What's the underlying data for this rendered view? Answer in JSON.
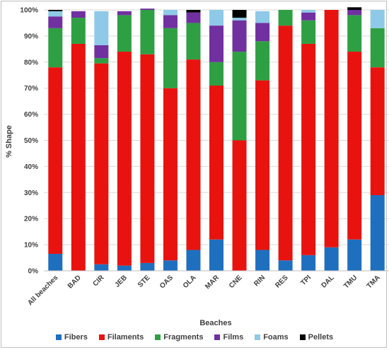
{
  "chart_data": {
    "type": "bar",
    "stacked": true,
    "title": "",
    "xlabel": "Beaches",
    "ylabel": "% Shape",
    "ylim": [
      0,
      100
    ],
    "y_ticks": [
      "0%",
      "10%",
      "20%",
      "30%",
      "40%",
      "50%",
      "60%",
      "70%",
      "80%",
      "90%",
      "100%"
    ],
    "grid": "horizontal",
    "legend_position": "bottom",
    "categories": [
      "All beaches",
      "BAD",
      "CIR",
      "JEB",
      "STE",
      "OAS",
      "OLA",
      "MAR",
      "CNE",
      "RIN",
      "RES",
      "TPI",
      "DAL",
      "TMU",
      "TMA"
    ],
    "series": [
      {
        "name": "Fibers",
        "color": "#1f6fbf",
        "values": [
          6.5,
          0,
          2.5,
          2,
          3,
          4,
          8,
          12,
          0,
          8,
          4,
          6,
          9,
          12,
          29
        ]
      },
      {
        "name": "Filaments",
        "color": "#e8130f",
        "values": [
          71.5,
          87,
          77,
          82,
          80,
          66,
          73,
          59,
          50,
          65,
          90,
          81,
          91,
          72,
          49
        ]
      },
      {
        "name": "Fragments",
        "color": "#2ea043",
        "values": [
          15,
          10,
          2,
          14,
          17,
          23,
          14,
          9,
          34,
          15,
          6,
          9,
          0,
          14,
          15
        ]
      },
      {
        "name": "Films",
        "color": "#7030a0",
        "values": [
          4.5,
          2.5,
          5,
          1.5,
          0.5,
          5,
          4,
          14,
          12,
          7,
          0,
          3,
          0,
          2,
          0
        ]
      },
      {
        "name": "Foams",
        "color": "#8ec9e8",
        "values": [
          2,
          0,
          13,
          0,
          0,
          2,
          0,
          6,
          1,
          4.5,
          0,
          1,
          0,
          0,
          7
        ]
      },
      {
        "name": "Pellets",
        "color": "#000000",
        "values": [
          0.5,
          0,
          0,
          0,
          0,
          0,
          1,
          0,
          3,
          0,
          0,
          0,
          0,
          1,
          0
        ]
      }
    ]
  }
}
